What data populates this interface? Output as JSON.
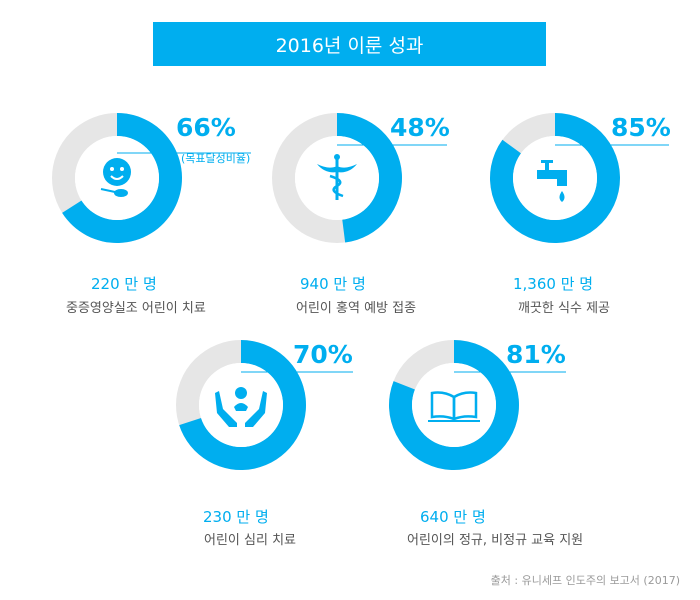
{
  "title": "2016년 이룬 성과",
  "colors": {
    "accent": "#00aeef",
    "track": "#e6e6e6",
    "icon_bg": "#ffffff"
  },
  "source": "출처 : 유니세프 인도주의 보고서 (2017)",
  "chart_data": {
    "type": "donut",
    "title": "2016년 이룬 성과",
    "items": [
      {
        "percent_label": "66%",
        "percent": 66,
        "note": "(목표달성비율)",
        "count": "220 만 명",
        "label": "중증영양실조 어린이 치료",
        "icon": "child-nutrition-icon"
      },
      {
        "percent_label": "48%",
        "percent": 48,
        "note": "",
        "count": "940 만 명",
        "label": "어린이 홍역 예방 접종",
        "icon": "medical-caduceus-icon"
      },
      {
        "percent_label": "85%",
        "percent": 85,
        "note": "",
        "count": "1,360 만 명",
        "label": "깨끗한 식수 제공",
        "icon": "water-tap-icon"
      },
      {
        "percent_label": "70%",
        "percent": 70,
        "note": "",
        "count": "230 만 명",
        "label": "어린이 심리 치료",
        "icon": "caring-hands-icon"
      },
      {
        "percent_label": "81%",
        "percent": 81,
        "note": "",
        "count": "640 만 명",
        "label": "어린이의 정규, 비정규 교육 지원",
        "icon": "open-book-icon"
      }
    ]
  }
}
